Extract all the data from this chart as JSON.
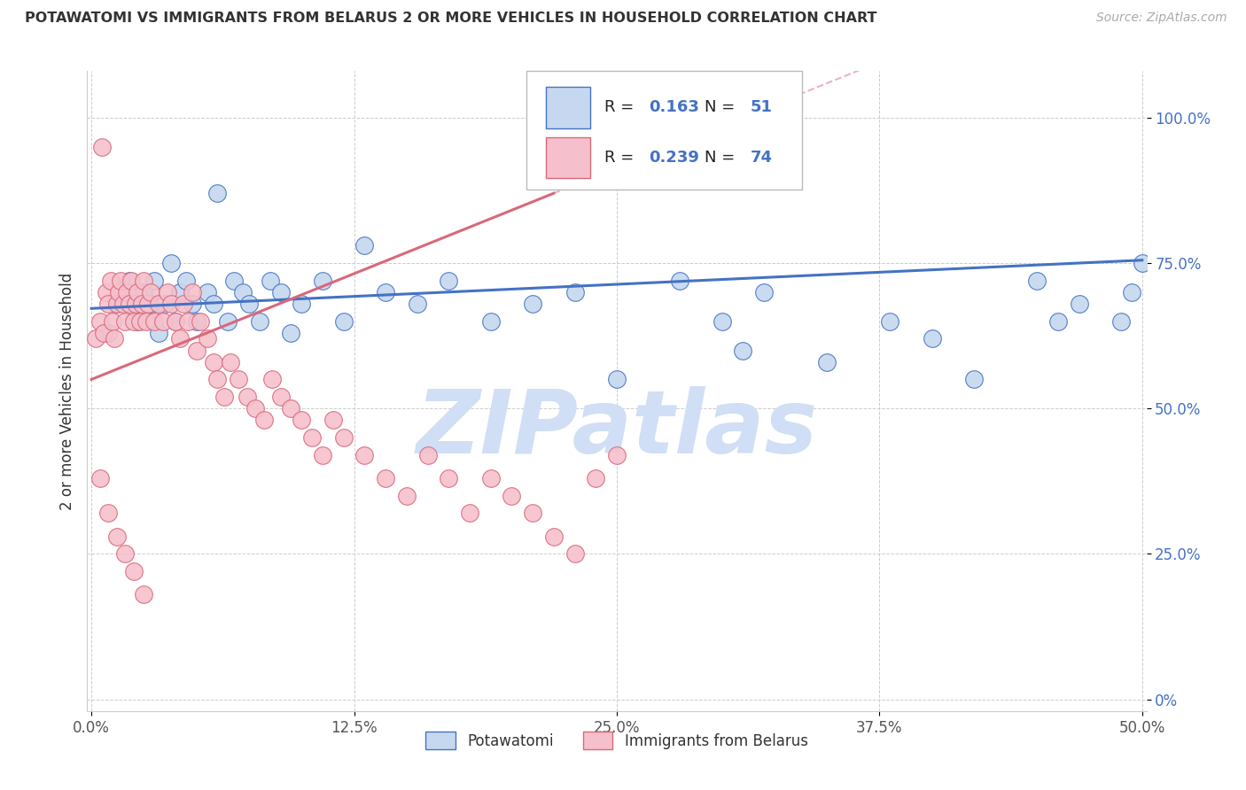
{
  "title": "POTAWATOMI VS IMMIGRANTS FROM BELARUS 2 OR MORE VEHICLES IN HOUSEHOLD CORRELATION CHART",
  "source": "Source: ZipAtlas.com",
  "ylabel": "2 or more Vehicles in Household",
  "legend_label_blue": "Potawatomi",
  "legend_label_pink": "Immigrants from Belarus",
  "R_blue": 0.163,
  "N_blue": 51,
  "R_pink": 0.239,
  "N_pink": 74,
  "xlim": [
    -0.002,
    0.502
  ],
  "ylim": [
    -0.02,
    1.08
  ],
  "xtick_vals": [
    0.0,
    0.125,
    0.25,
    0.375,
    0.5
  ],
  "xtick_labels": [
    "0.0%",
    "12.5%",
    "25.0%",
    "37.5%",
    "50.0%"
  ],
  "ytick_vals": [
    0.0,
    0.25,
    0.5,
    0.75,
    1.0
  ],
  "ytick_labels": [
    "0%",
    "25.0%",
    "50.0%",
    "75.0%",
    "100.0%"
  ],
  "color_blue": "#c5d8ef",
  "color_pink": "#f5c0cc",
  "line_color_blue": "#4472c4",
  "line_color_pink": "#d9687a",
  "watermark_color": "#d0dff5",
  "background_color": "#ffffff",
  "blue_x": [
    0.008,
    0.012,
    0.018,
    0.022,
    0.025,
    0.028,
    0.03,
    0.032,
    0.035,
    0.038,
    0.04,
    0.042,
    0.045,
    0.048,
    0.05,
    0.055,
    0.058,
    0.06,
    0.065,
    0.068,
    0.072,
    0.075,
    0.08,
    0.085,
    0.09,
    0.095,
    0.1,
    0.11,
    0.12,
    0.13,
    0.14,
    0.155,
    0.17,
    0.19,
    0.21,
    0.23,
    0.25,
    0.28,
    0.3,
    0.32,
    0.35,
    0.38,
    0.4,
    0.42,
    0.45,
    0.46,
    0.47,
    0.49,
    0.495,
    0.5,
    0.31
  ],
  "blue_y": [
    0.63,
    0.68,
    0.72,
    0.65,
    0.7,
    0.68,
    0.72,
    0.63,
    0.68,
    0.75,
    0.65,
    0.7,
    0.72,
    0.68,
    0.65,
    0.7,
    0.68,
    0.87,
    0.65,
    0.72,
    0.7,
    0.68,
    0.65,
    0.72,
    0.7,
    0.63,
    0.68,
    0.72,
    0.65,
    0.78,
    0.7,
    0.68,
    0.72,
    0.65,
    0.68,
    0.7,
    0.55,
    0.72,
    0.65,
    0.7,
    0.58,
    0.65,
    0.62,
    0.55,
    0.72,
    0.65,
    0.68,
    0.65,
    0.7,
    0.75,
    0.6
  ],
  "pink_x": [
    0.002,
    0.004,
    0.005,
    0.006,
    0.007,
    0.008,
    0.009,
    0.01,
    0.011,
    0.012,
    0.013,
    0.014,
    0.015,
    0.016,
    0.017,
    0.018,
    0.019,
    0.02,
    0.021,
    0.022,
    0.023,
    0.024,
    0.025,
    0.026,
    0.027,
    0.028,
    0.03,
    0.032,
    0.034,
    0.036,
    0.038,
    0.04,
    0.042,
    0.044,
    0.046,
    0.048,
    0.05,
    0.052,
    0.055,
    0.058,
    0.06,
    0.063,
    0.066,
    0.07,
    0.074,
    0.078,
    0.082,
    0.086,
    0.09,
    0.095,
    0.1,
    0.105,
    0.11,
    0.115,
    0.12,
    0.13,
    0.14,
    0.15,
    0.16,
    0.17,
    0.18,
    0.19,
    0.2,
    0.21,
    0.22,
    0.23,
    0.24,
    0.25,
    0.004,
    0.008,
    0.012,
    0.016,
    0.02,
    0.025
  ],
  "pink_y": [
    0.62,
    0.65,
    0.95,
    0.63,
    0.7,
    0.68,
    0.72,
    0.65,
    0.62,
    0.68,
    0.7,
    0.72,
    0.68,
    0.65,
    0.7,
    0.68,
    0.72,
    0.65,
    0.68,
    0.7,
    0.65,
    0.68,
    0.72,
    0.65,
    0.68,
    0.7,
    0.65,
    0.68,
    0.65,
    0.7,
    0.68,
    0.65,
    0.62,
    0.68,
    0.65,
    0.7,
    0.6,
    0.65,
    0.62,
    0.58,
    0.55,
    0.52,
    0.58,
    0.55,
    0.52,
    0.5,
    0.48,
    0.55,
    0.52,
    0.5,
    0.48,
    0.45,
    0.42,
    0.48,
    0.45,
    0.42,
    0.38,
    0.35,
    0.42,
    0.38,
    0.32,
    0.38,
    0.35,
    0.32,
    0.28,
    0.25,
    0.38,
    0.42,
    0.38,
    0.32,
    0.28,
    0.25,
    0.22,
    0.18
  ]
}
